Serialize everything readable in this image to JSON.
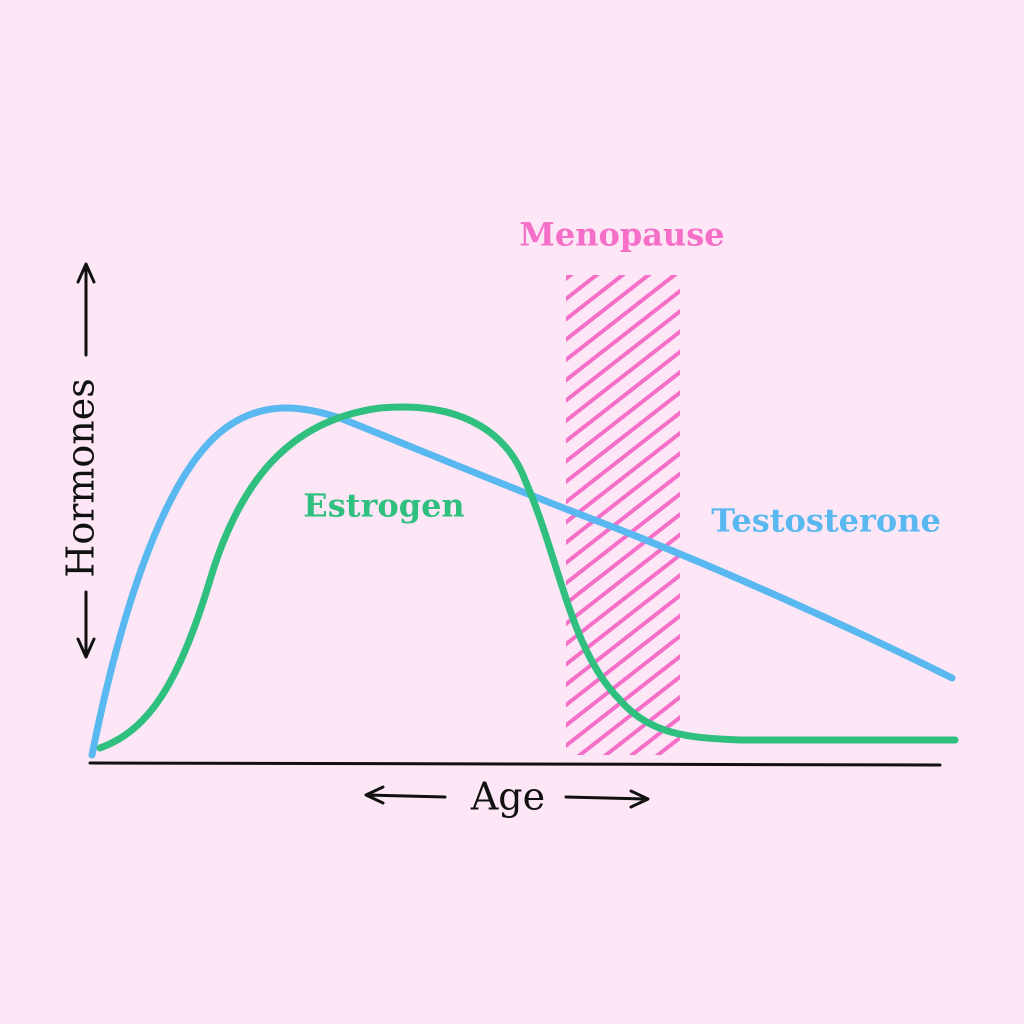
{
  "y_label": "Hormones",
  "x_label": "Age",
  "curves": [
    {
      "label": "Estrogen",
      "color": "#2fbf7f"
    },
    {
      "label": "Testosterone",
      "color": "#5ab8f0"
    }
  ],
  "band": {
    "label": "Menopause",
    "color": "#f56fc8"
  }
}
